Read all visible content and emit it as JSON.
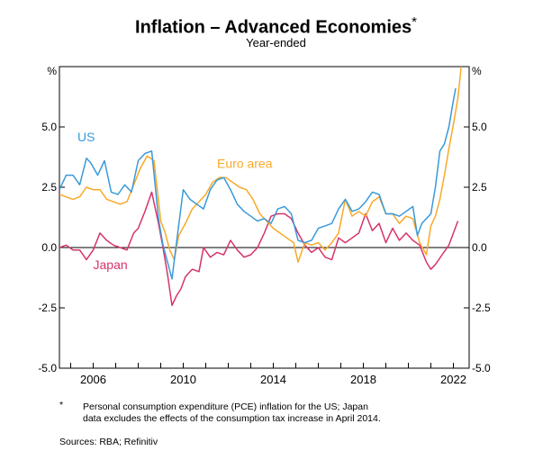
{
  "chart_data": {
    "type": "line",
    "title": "Inflation – Advanced Economies",
    "title_mark": "*",
    "subtitle": "Year-ended",
    "ylabel_left": "%",
    "ylabel_right": "%",
    "ylim": [
      -5.0,
      7.5
    ],
    "xlim": [
      2004.5,
      2022.7
    ],
    "yticks": [
      -5.0,
      -2.5,
      0.0,
      2.5,
      5.0
    ],
    "ytick_labels": [
      "-5.0",
      "-2.5",
      "0.0",
      "2.5",
      "5.0"
    ],
    "xticks": [
      2006,
      2010,
      2014,
      2018,
      2022
    ],
    "xtick_labels": [
      "2006",
      "2010",
      "2014",
      "2018",
      "2022"
    ],
    "grid": false,
    "zero_line": true,
    "series": [
      {
        "name": "US",
        "color": "#3A9AD9",
        "x": [
          2004.5,
          2004.8,
          2005.1,
          2005.4,
          2005.7,
          2005.9,
          2006.2,
          2006.5,
          2006.8,
          2007.1,
          2007.4,
          2007.7,
          2008.0,
          2008.3,
          2008.6,
          2008.9,
          2009.1,
          2009.3,
          2009.5,
          2009.7,
          2010.0,
          2010.3,
          2010.6,
          2010.9,
          2011.2,
          2011.5,
          2011.8,
          2012.1,
          2012.4,
          2012.7,
          2013.0,
          2013.3,
          2013.6,
          2013.9,
          2014.2,
          2014.5,
          2014.8,
          2015.1,
          2015.4,
          2015.7,
          2016.0,
          2016.3,
          2016.6,
          2016.9,
          2017.2,
          2017.5,
          2017.8,
          2018.1,
          2018.4,
          2018.7,
          2019.0,
          2019.3,
          2019.6,
          2019.9,
          2020.2,
          2020.4,
          2020.6,
          2020.8,
          2021.0,
          2021.2,
          2021.4,
          2021.6,
          2021.8,
          2022.0,
          2022.1
        ],
        "y": [
          2.4,
          3.0,
          3.0,
          2.6,
          3.7,
          3.5,
          3.0,
          3.6,
          2.3,
          2.2,
          2.6,
          2.3,
          3.6,
          3.9,
          4.0,
          1.2,
          0.1,
          -0.6,
          -1.3,
          0.2,
          2.4,
          2.0,
          1.8,
          1.6,
          2.4,
          2.8,
          2.9,
          2.4,
          1.8,
          1.5,
          1.3,
          1.1,
          1.2,
          1.0,
          1.6,
          1.7,
          1.4,
          0.3,
          0.2,
          0.3,
          0.8,
          0.9,
          1.0,
          1.6,
          2.0,
          1.5,
          1.6,
          1.9,
          2.3,
          2.2,
          1.4,
          1.4,
          1.3,
          1.5,
          1.7,
          0.5,
          1.0,
          1.2,
          1.4,
          2.5,
          4.0,
          4.3,
          5.0,
          6.1,
          6.6
        ]
      },
      {
        "name": "Euro area",
        "color": "#F9A929",
        "x": [
          2004.5,
          2004.8,
          2005.1,
          2005.4,
          2005.7,
          2006.0,
          2006.3,
          2006.6,
          2006.9,
          2007.2,
          2007.5,
          2007.8,
          2008.1,
          2008.4,
          2008.7,
          2009.0,
          2009.2,
          2009.4,
          2009.6,
          2009.8,
          2010.1,
          2010.4,
          2010.7,
          2011.0,
          2011.3,
          2011.6,
          2011.9,
          2012.2,
          2012.5,
          2012.8,
          2013.1,
          2013.4,
          2013.7,
          2014.0,
          2014.3,
          2014.6,
          2014.9,
          2015.1,
          2015.4,
          2015.7,
          2016.0,
          2016.3,
          2016.6,
          2016.9,
          2017.2,
          2017.5,
          2017.8,
          2018.1,
          2018.4,
          2018.7,
          2019.0,
          2019.3,
          2019.6,
          2019.9,
          2020.2,
          2020.5,
          2020.8,
          2021.0,
          2021.2,
          2021.4,
          2021.6,
          2021.8,
          2022.0,
          2022.2,
          2022.35
        ],
        "y": [
          2.2,
          2.1,
          2.0,
          2.1,
          2.5,
          2.4,
          2.4,
          2.0,
          1.9,
          1.8,
          1.9,
          2.6,
          3.3,
          3.8,
          3.6,
          1.1,
          0.6,
          -0.1,
          -0.5,
          0.5,
          1.0,
          1.6,
          1.9,
          2.2,
          2.7,
          2.9,
          2.9,
          2.7,
          2.5,
          2.4,
          2.0,
          1.4,
          1.1,
          0.8,
          0.6,
          0.4,
          0.2,
          -0.6,
          0.2,
          0.1,
          0.2,
          -0.1,
          0.2,
          0.6,
          2.0,
          1.3,
          1.5,
          1.3,
          1.9,
          2.1,
          1.4,
          1.4,
          1.0,
          1.3,
          1.2,
          0.2,
          -0.3,
          0.9,
          1.3,
          2.0,
          3.0,
          4.1,
          5.1,
          6.2,
          7.5
        ]
      },
      {
        "name": "Japan",
        "color": "#D6336C",
        "x": [
          2004.5,
          2004.8,
          2005.1,
          2005.4,
          2005.7,
          2006.0,
          2006.3,
          2006.6,
          2006.9,
          2007.2,
          2007.5,
          2007.8,
          2008.0,
          2008.3,
          2008.6,
          2008.9,
          2009.1,
          2009.3,
          2009.5,
          2009.7,
          2009.9,
          2010.1,
          2010.4,
          2010.7,
          2010.9,
          2011.2,
          2011.5,
          2011.8,
          2012.1,
          2012.4,
          2012.7,
          2013.0,
          2013.3,
          2013.6,
          2013.9,
          2014.2,
          2014.5,
          2014.8,
          2015.1,
          2015.4,
          2015.7,
          2016.0,
          2016.3,
          2016.6,
          2016.9,
          2017.2,
          2017.5,
          2017.8,
          2018.1,
          2018.4,
          2018.7,
          2019.0,
          2019.3,
          2019.6,
          2019.9,
          2020.2,
          2020.5,
          2020.8,
          2021.0,
          2021.2,
          2021.5,
          2021.8,
          2022.0,
          2022.2
        ],
        "y": [
          0.0,
          0.1,
          -0.1,
          -0.1,
          -0.5,
          -0.1,
          0.6,
          0.3,
          0.1,
          0.0,
          -0.1,
          0.6,
          0.8,
          1.5,
          2.3,
          1.0,
          0.0,
          -1.1,
          -2.4,
          -2.0,
          -1.7,
          -1.2,
          -0.9,
          -1.0,
          0.0,
          -0.4,
          -0.2,
          -0.3,
          0.3,
          -0.1,
          -0.4,
          -0.3,
          0.0,
          0.6,
          1.3,
          1.4,
          1.4,
          1.2,
          0.6,
          0.1,
          -0.2,
          0.0,
          -0.4,
          -0.5,
          0.4,
          0.2,
          0.4,
          0.6,
          1.4,
          0.7,
          1.0,
          0.2,
          0.8,
          0.3,
          0.6,
          0.3,
          0.1,
          -0.6,
          -0.9,
          -0.7,
          -0.3,
          0.1,
          0.6,
          1.1
        ]
      }
    ],
    "annotations": [
      {
        "text": "US",
        "x": 2005.3,
        "y": 4.4,
        "color": "#3A9AD9"
      },
      {
        "text": "Euro area",
        "x": 2011.5,
        "y": 3.3,
        "color": "#F9A929"
      },
      {
        "text": "Japan",
        "x": 2006.0,
        "y": -0.9,
        "color": "#D6336C"
      }
    ]
  },
  "footnote": {
    "mark": "*",
    "line1": "Personal consumption expenditure (PCE) inflation for the US; Japan",
    "line2": "data excludes the effects of the consumption tax increase in April 2014."
  },
  "sources": "Sources: RBA; Refinitiv"
}
